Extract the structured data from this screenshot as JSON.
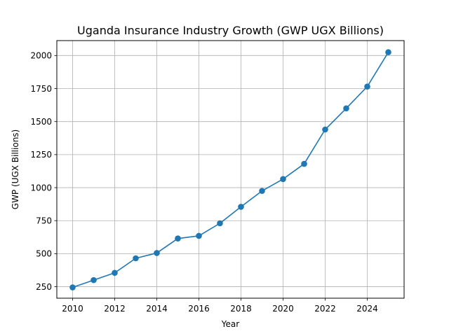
{
  "chart_data": {
    "type": "line",
    "title": "Uganda Insurance Industry Growth (GWP UGX Billions)",
    "xlabel": "Year",
    "ylabel": "GWP (UGX Billions)",
    "x": [
      2010,
      2011,
      2012,
      2013,
      2014,
      2015,
      2016,
      2017,
      2018,
      2019,
      2020,
      2021,
      2022,
      2023,
      2024,
      2025
    ],
    "series": [
      {
        "name": "GWP",
        "values": [
          245,
          300,
          355,
          465,
          505,
          615,
          635,
          730,
          855,
          975,
          1065,
          1180,
          1440,
          1600,
          1765,
          2025
        ],
        "color": "#1f77b4",
        "marker": "circle"
      }
    ],
    "xlim": [
      2009.25,
      2025.75
    ],
    "ylim": [
      163,
      2113
    ],
    "xticks": [
      2010,
      2012,
      2014,
      2016,
      2018,
      2020,
      2022,
      2024
    ],
    "xtick_labels": [
      "2010",
      "2012",
      "2014",
      "2016",
      "2018",
      "2020",
      "2022",
      "2024"
    ],
    "yticks": [
      250,
      500,
      750,
      1000,
      1250,
      1500,
      1750,
      2000
    ],
    "ytick_labels": [
      "250",
      "500",
      "750",
      "1000",
      "1250",
      "1500",
      "1750",
      "2000"
    ],
    "grid": true,
    "grid_color": "#b0b0b0",
    "legend": "none"
  }
}
